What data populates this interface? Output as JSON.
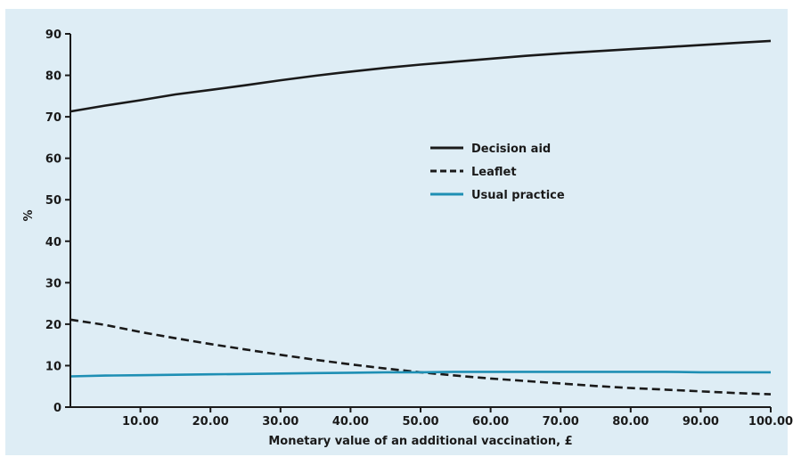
{
  "chart_data": {
    "type": "line",
    "title": "",
    "xlabel": "Monetary value of an additional vaccination, £",
    "ylabel": "%",
    "xlim": [
      0,
      100
    ],
    "ylim": [
      0,
      90
    ],
    "x_ticks": [
      10,
      20,
      30,
      40,
      50,
      60,
      70,
      80,
      90,
      100
    ],
    "x_tick_labels": [
      "10.00",
      "20.00",
      "30.00",
      "40.00",
      "50.00",
      "60.00",
      "70.00",
      "80.00",
      "90.00",
      "100.00"
    ],
    "y_ticks": [
      0,
      10,
      20,
      30,
      40,
      50,
      60,
      70,
      80,
      90
    ],
    "y_tick_labels": [
      "0",
      "10",
      "20",
      "30",
      "40",
      "50",
      "60",
      "70",
      "80",
      "90"
    ],
    "grid": false,
    "legend_position": "center-right",
    "background_color": "#deedf5",
    "series": [
      {
        "name": "Decision aid",
        "style": "solid",
        "color": "#1a1a1a",
        "x": [
          0,
          5,
          10,
          15,
          20,
          25,
          30,
          35,
          40,
          45,
          50,
          55,
          60,
          65,
          70,
          75,
          80,
          85,
          90,
          95,
          100
        ],
        "y": [
          71.3,
          72.7,
          74.0,
          75.4,
          76.5,
          77.6,
          78.8,
          79.9,
          80.9,
          81.8,
          82.6,
          83.3,
          84.0,
          84.7,
          85.3,
          85.8,
          86.3,
          86.8,
          87.3,
          87.8,
          88.3
        ]
      },
      {
        "name": "Leaflet",
        "style": "dashed",
        "color": "#1a1a1a",
        "x": [
          0,
          5,
          10,
          15,
          20,
          25,
          30,
          35,
          40,
          45,
          50,
          55,
          60,
          65,
          70,
          75,
          80,
          85,
          90,
          95,
          100
        ],
        "y": [
          21.1,
          19.8,
          18.1,
          16.6,
          15.2,
          13.9,
          12.6,
          11.4,
          10.3,
          9.3,
          8.4,
          7.6,
          6.9,
          6.3,
          5.7,
          5.1,
          4.6,
          4.2,
          3.8,
          3.4,
          3.1
        ]
      },
      {
        "name": "Usual practice",
        "style": "solid",
        "color": "#1e8fb4",
        "x": [
          0,
          5,
          10,
          15,
          20,
          25,
          30,
          35,
          40,
          45,
          50,
          55,
          60,
          65,
          70,
          75,
          80,
          85,
          90,
          95,
          100
        ],
        "y": [
          7.4,
          7.6,
          7.7,
          7.8,
          7.9,
          8.0,
          8.1,
          8.2,
          8.3,
          8.4,
          8.4,
          8.5,
          8.5,
          8.5,
          8.5,
          8.5,
          8.5,
          8.5,
          8.4,
          8.4,
          8.4
        ]
      }
    ]
  }
}
